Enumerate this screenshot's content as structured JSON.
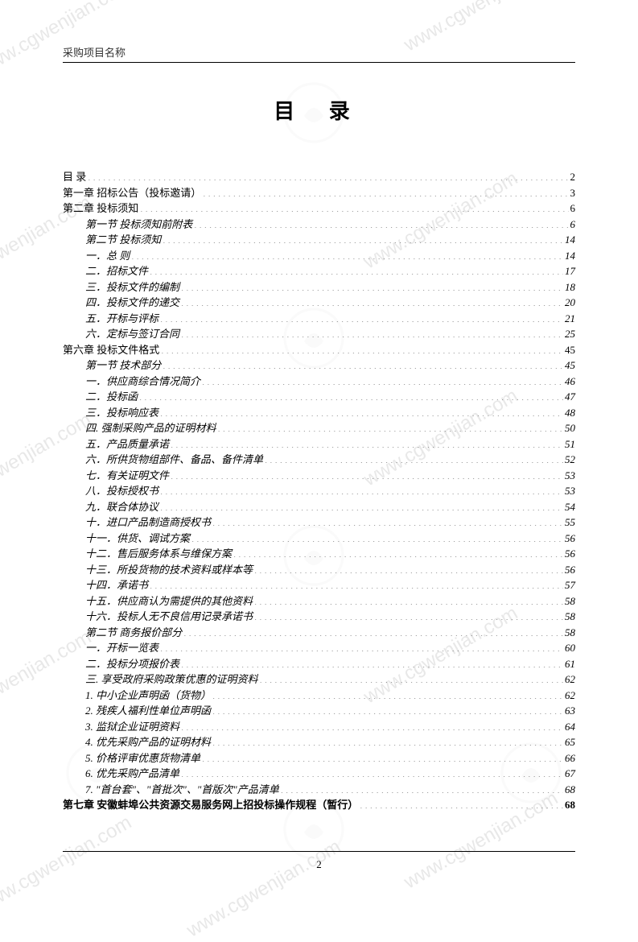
{
  "header": {
    "label": "采购项目名称"
  },
  "title": "目 录",
  "footer": {
    "pageNum": "2"
  },
  "watermarks": {
    "text": "www.cgwenjian.com",
    "color": "#e8e8e8"
  },
  "toc": [
    {
      "text": "目   录",
      "page": "2",
      "indent": 1,
      "italic": false,
      "bold": false
    },
    {
      "text": "第一章 招标公告（投标邀请）",
      "page": "3",
      "indent": 1,
      "italic": false,
      "bold": false
    },
    {
      "text": "第二章 投标须知",
      "page": "6",
      "indent": 1,
      "italic": false,
      "bold": false
    },
    {
      "text": "第一节 投标须知前附表",
      "page": "6",
      "indent": 2,
      "italic": true,
      "bold": false
    },
    {
      "text": "第二节 投标须知",
      "page": "14",
      "indent": 2,
      "italic": true,
      "bold": false
    },
    {
      "text": "一．总   则",
      "page": "14",
      "indent": 2,
      "italic": true,
      "bold": false
    },
    {
      "text": "二．招标文件",
      "page": "17",
      "indent": 2,
      "italic": true,
      "bold": false
    },
    {
      "text": "三．投标文件的编制",
      "page": "18",
      "indent": 2,
      "italic": true,
      "bold": false
    },
    {
      "text": "四．投标文件的递交",
      "page": "20",
      "indent": 2,
      "italic": true,
      "bold": false
    },
    {
      "text": "五．开标与评标",
      "page": "21",
      "indent": 2,
      "italic": true,
      "bold": false
    },
    {
      "text": "六．定标与签订合同",
      "page": "25",
      "indent": 2,
      "italic": true,
      "bold": false
    },
    {
      "text": "第六章 投标文件格式",
      "page": "45",
      "indent": 1,
      "italic": false,
      "bold": false
    },
    {
      "text": "第一节 技术部分",
      "page": "45",
      "indent": 2,
      "italic": true,
      "bold": false
    },
    {
      "text": "一．供应商综合情况简介",
      "page": "46",
      "indent": 2,
      "italic": true,
      "bold": false
    },
    {
      "text": "二．投标函",
      "page": "47",
      "indent": 2,
      "italic": true,
      "bold": false
    },
    {
      "text": "三．投标响应表",
      "page": "48",
      "indent": 2,
      "italic": true,
      "bold": false
    },
    {
      "text": "四. 强制采购产品的证明材料",
      "page": "50",
      "indent": 2,
      "italic": true,
      "bold": false
    },
    {
      "text": "五．产品质量承诺",
      "page": "51",
      "indent": 2,
      "italic": true,
      "bold": false
    },
    {
      "text": "六．所供货物组部件、备品、备件清单",
      "page": "52",
      "indent": 2,
      "italic": true,
      "bold": false
    },
    {
      "text": "七．有关证明文件",
      "page": "53",
      "indent": 2,
      "italic": true,
      "bold": false
    },
    {
      "text": "八．投标授权书",
      "page": "53",
      "indent": 2,
      "italic": true,
      "bold": false
    },
    {
      "text": "九．联合体协议",
      "page": "54",
      "indent": 2,
      "italic": true,
      "bold": false
    },
    {
      "text": "十．进口产品制造商授权书",
      "page": "55",
      "indent": 2,
      "italic": true,
      "bold": false
    },
    {
      "text": "十一．供货、调试方案",
      "page": "56",
      "indent": 2,
      "italic": true,
      "bold": false
    },
    {
      "text": "十二．售后服务体系与维保方案",
      "page": "56",
      "indent": 2,
      "italic": true,
      "bold": false
    },
    {
      "text": "十三．所投货物的技术资料或样本等",
      "page": "56",
      "indent": 2,
      "italic": true,
      "bold": false
    },
    {
      "text": "十四．承诺书",
      "page": "57",
      "indent": 2,
      "italic": true,
      "bold": false
    },
    {
      "text": "十五．供应商认为需提供的其他资料",
      "page": "58",
      "indent": 2,
      "italic": true,
      "bold": false
    },
    {
      "text": "十六．投标人无不良信用记录承诺书",
      "page": "58",
      "indent": 2,
      "italic": true,
      "bold": false
    },
    {
      "text": "第二节 商务报价部分",
      "page": "58",
      "indent": 2,
      "italic": true,
      "bold": false
    },
    {
      "text": "一．开标一览表",
      "page": "60",
      "indent": 2,
      "italic": true,
      "bold": false
    },
    {
      "text": "二．投标分项报价表",
      "page": "61",
      "indent": 2,
      "italic": true,
      "bold": false
    },
    {
      "text": "三. 享受政府采购政策优惠的证明资料",
      "page": "62",
      "indent": 2,
      "italic": true,
      "bold": false
    },
    {
      "text": "1. 中小企业声明函（货物）",
      "page": "62",
      "indent": 2,
      "italic": true,
      "bold": false
    },
    {
      "text": "2. 残疾人福利性单位声明函",
      "page": "63",
      "indent": 2,
      "italic": true,
      "bold": false
    },
    {
      "text": "3. 监狱企业证明资料",
      "page": "64",
      "indent": 2,
      "italic": true,
      "bold": false
    },
    {
      "text": "4. 优先采购产品的证明材料",
      "page": "65",
      "indent": 2,
      "italic": true,
      "bold": false
    },
    {
      "text": "5. 价格评审优惠货物清单",
      "page": "66",
      "indent": 2,
      "italic": true,
      "bold": false
    },
    {
      "text": "6. 优先采购产品清单",
      "page": "67",
      "indent": 2,
      "italic": true,
      "bold": false
    },
    {
      "text": "7. \"首台套\"、\"首批次\"、\"首版次\"产品清单",
      "page": "68",
      "indent": 2,
      "italic": true,
      "bold": false
    },
    {
      "text": "第七章   安徽蚌埠公共资源交易服务网上招投标操作规程（暂行）",
      "page": "68",
      "indent": 1,
      "italic": false,
      "bold": true
    }
  ]
}
